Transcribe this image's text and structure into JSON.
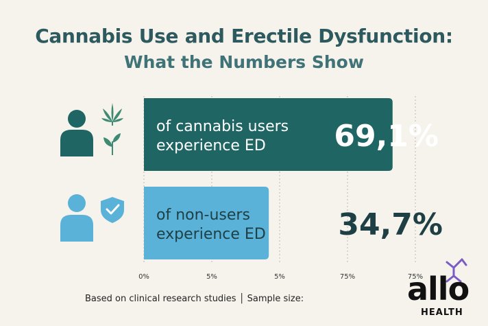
{
  "title": {
    "line1": "Cannabis Use and Erectile Dysfunction:",
    "line2": "What the Numbers Show"
  },
  "chart_data": {
    "type": "bar",
    "orientation": "horizontal",
    "categories": [
      "of cannabis users experience ED",
      "of non-users experience ED"
    ],
    "category_lines": [
      [
        "of cannabis users",
        "experience ED"
      ],
      [
        "of non-users",
        "experience ED"
      ]
    ],
    "values": [
      69.1,
      34.7
    ],
    "value_labels": [
      "69,1%",
      "34,7%"
    ],
    "bar_colors": [
      "#1f6563",
      "#5bb2d8"
    ],
    "label_colors": [
      "#ffffff",
      "#1e3f44"
    ],
    "x_tick_labels": [
      "0%",
      "5%",
      "5%",
      "75%",
      "75%"
    ],
    "grid": true,
    "xlim": [
      0,
      80
    ]
  },
  "footnote": "Based on clinical research studies │ Sample size:",
  "logo": {
    "word": "allo",
    "sub": "HEALTH",
    "accent": "#7a5cc4"
  },
  "icons": [
    "person-icon",
    "cannabis-leaf-icon",
    "sprout-icon",
    "person-icon",
    "shield-check-icon"
  ]
}
